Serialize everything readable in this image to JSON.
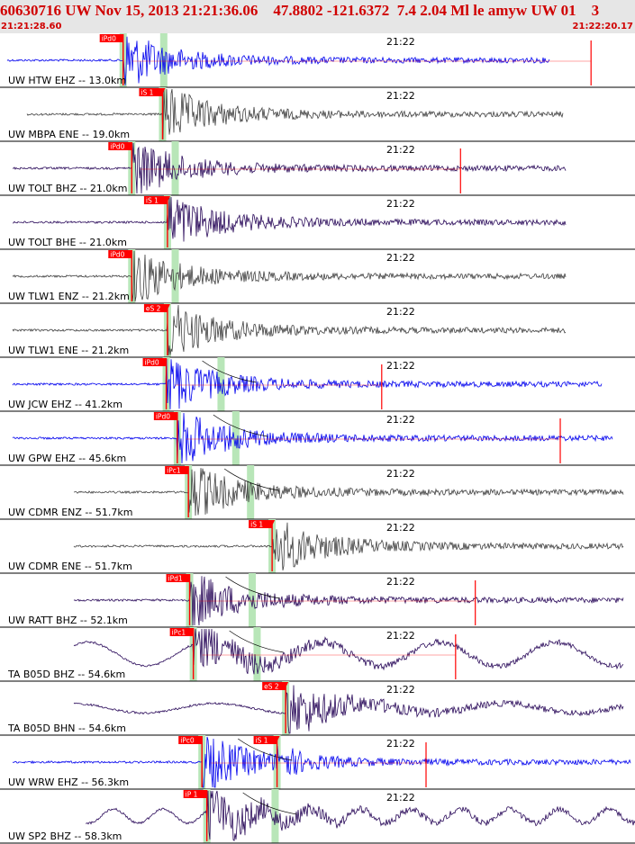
{
  "header": {
    "title": "60630716 UW Nov 15, 2013 21:21:36.06    47.8802 -121.6372  7.4 2.04 Ml le amyw UW 01    3",
    "start_time": "21:21:28.60",
    "end_time": "21:22:20.17"
  },
  "colors": {
    "header_bg": "#e6e6e6",
    "header_text": "#d00000",
    "pick_flag": "#ff0000",
    "pick_window": "#b8e6b8",
    "trace_blue": "#0000ee",
    "trace_gray": "#404040",
    "trace_purple": "#2a0a5a"
  },
  "chart_data": {
    "type": "line",
    "x_axis": {
      "start": "21:21:28.60",
      "end": "21:22:20.17",
      "tick_label": "21:22"
    },
    "series": [
      {
        "name": "UW HTW EHZ -- 13.0km",
        "color": "blue",
        "picks": [
          {
            "label": "iPd0",
            "phase": "P",
            "time": "21:21:38.6"
          }
        ],
        "marker_time": "21:22:16.6"
      },
      {
        "name": "UW MBPA ENE -- 19.0km",
        "color": "gray",
        "picks": [
          {
            "label": "iS 1",
            "phase": "S",
            "time": "21:21:41.8"
          }
        ]
      },
      {
        "name": "UW TOLT BHZ -- 21.0km",
        "color": "purple",
        "picks": [
          {
            "label": "iPd0",
            "phase": "P",
            "time": "21:21:39.3"
          }
        ],
        "marker_time": "21:22:06.0"
      },
      {
        "name": "UW TOLT BHE -- 21.0km",
        "color": "purple",
        "picks": [
          {
            "label": "iS 1",
            "phase": "S",
            "time": "21:21:42.2"
          }
        ]
      },
      {
        "name": "UW TLW1 ENZ -- 21.2km",
        "color": "gray",
        "picks": [
          {
            "label": "iPd0",
            "phase": "P",
            "time": "21:21:39.3"
          }
        ]
      },
      {
        "name": "UW TLW1 ENE -- 21.2km",
        "color": "gray",
        "picks": [
          {
            "label": "eS 2",
            "phase": "S",
            "time": "21:21:42.2"
          }
        ]
      },
      {
        "name": "UW JCW EHZ -- 41.2km",
        "color": "blue",
        "picks": [
          {
            "label": "iPd0",
            "phase": "P",
            "time": "21:21:42.1"
          }
        ],
        "marker_time": "21:21:59.6"
      },
      {
        "name": "UW GPW EHZ -- 45.6km",
        "color": "blue",
        "picks": [
          {
            "label": "iPd0",
            "phase": "P",
            "time": "21:21:43.0"
          }
        ],
        "marker_time": "21:22:14.1"
      },
      {
        "name": "UW CDMR ENZ -- 51.7km",
        "color": "gray",
        "picks": [
          {
            "label": "iPc1",
            "phase": "P",
            "time": "21:21:43.9"
          }
        ]
      },
      {
        "name": "UW CDMR ENE -- 51.7km",
        "color": "gray",
        "picks": [
          {
            "label": "iS 1",
            "phase": "S",
            "time": "21:21:50.7"
          }
        ]
      },
      {
        "name": "UW RATT BHZ -- 52.1km",
        "color": "purple",
        "picks": [
          {
            "label": "iPd1",
            "phase": "P",
            "time": "21:21:44.0"
          }
        ],
        "marker_time": "21:22:07.2"
      },
      {
        "name": "TA B05D BHZ -- 54.6km",
        "color": "purple",
        "picks": [
          {
            "label": "iPc1",
            "phase": "P",
            "time": "21:21:44.3"
          }
        ],
        "marker_time": "21:22:05.6"
      },
      {
        "name": "TA B05D BHN -- 54.6km",
        "color": "purple",
        "picks": [
          {
            "label": "eS 2",
            "phase": "S",
            "time": "21:21:51.8"
          }
        ]
      },
      {
        "name": "UW WRW EHZ -- 56.3km",
        "color": "blue",
        "picks": [
          {
            "label": "iPc0",
            "phase": "P",
            "time": "21:21:45.0"
          },
          {
            "label": "iS 1",
            "phase": "S",
            "time": "21:21:51.1"
          }
        ],
        "marker_time": "21:22:03.2"
      },
      {
        "name": "UW SP2 BHZ -- 58.3km",
        "color": "purple",
        "picks": [
          {
            "label": "iP 1",
            "phase": "P",
            "time": "21:21:45.4"
          }
        ]
      }
    ]
  }
}
